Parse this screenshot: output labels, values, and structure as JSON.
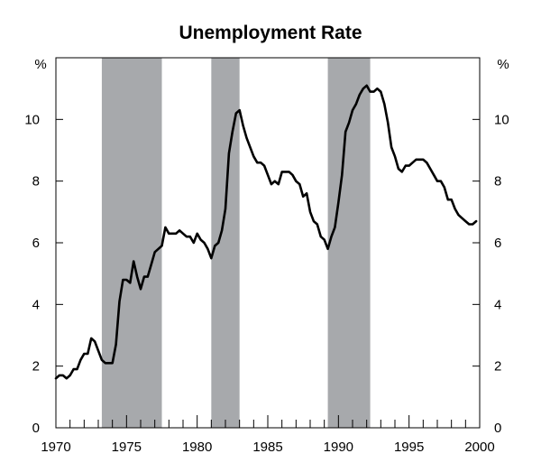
{
  "chart_data": {
    "type": "line",
    "title": "Unemployment Rate",
    "y_unit_left": "%",
    "y_unit_right": "%",
    "xlim": [
      1970,
      2000
    ],
    "ylim": [
      0,
      12
    ],
    "x_ticks": [
      "1970",
      "1975",
      "1980",
      "1985",
      "1990",
      "1995",
      "2000"
    ],
    "y_ticks": [
      "0",
      "2",
      "4",
      "6",
      "8",
      "10"
    ],
    "y_ticks_right": [
      "0",
      "2",
      "4",
      "6",
      "8",
      "10"
    ],
    "shaded_periods": [
      [
        1973.25,
        1977.5
      ],
      [
        1981.0,
        1983.0
      ],
      [
        1989.25,
        1992.25
      ]
    ],
    "shade_color": "#a7a9ac",
    "line_color": "#000000",
    "grid": false,
    "series": [
      {
        "x": [
          1970.0,
          1970.25,
          1970.5,
          1970.75,
          1971.0,
          1971.25,
          1971.5,
          1971.75,
          1972.0,
          1972.25,
          1972.5,
          1972.75,
          1973.0,
          1973.25,
          1973.5,
          1973.75,
          1974.0,
          1974.25,
          1974.5,
          1974.75,
          1975.0,
          1975.25,
          1975.5,
          1975.75,
          1976.0,
          1976.25,
          1976.5,
          1976.75,
          1977.0,
          1977.25,
          1977.5,
          1977.75,
          1978.0,
          1978.25,
          1978.5,
          1978.75,
          1979.0,
          1979.25,
          1979.5,
          1979.75,
          1980.0,
          1980.25,
          1980.5,
          1980.75,
          1981.0,
          1981.25,
          1981.5,
          1981.75,
          1982.0,
          1982.25,
          1982.5,
          1982.75,
          1983.0,
          1983.25,
          1983.5,
          1983.75,
          1984.0,
          1984.25,
          1984.5,
          1984.75,
          1985.0,
          1985.25,
          1985.5,
          1985.75,
          1986.0,
          1986.25,
          1986.5,
          1986.75,
          1987.0,
          1987.25,
          1987.5,
          1987.75,
          1988.0,
          1988.25,
          1988.5,
          1988.75,
          1989.0,
          1989.25,
          1989.5,
          1989.75,
          1990.0,
          1990.25,
          1990.5,
          1990.75,
          1991.0,
          1991.25,
          1991.5,
          1991.75,
          1992.0,
          1992.25,
          1992.5,
          1992.75,
          1993.0,
          1993.25,
          1993.5,
          1993.75,
          1994.0,
          1994.25,
          1994.5,
          1994.75,
          1995.0,
          1995.25,
          1995.5,
          1995.75,
          1996.0,
          1996.25,
          1996.5,
          1996.75,
          1997.0,
          1997.25,
          1997.5,
          1997.75,
          1998.0,
          1998.25,
          1998.5,
          1998.75,
          1999.0,
          1999.25,
          1999.5,
          1999.75
        ],
        "values": [
          1.6,
          1.7,
          1.7,
          1.6,
          1.7,
          1.9,
          1.9,
          2.2,
          2.4,
          2.4,
          2.9,
          2.8,
          2.5,
          2.2,
          2.1,
          2.1,
          2.1,
          2.7,
          4.1,
          4.8,
          4.8,
          4.7,
          5.4,
          4.9,
          4.5,
          4.9,
          4.9,
          5.3,
          5.7,
          5.8,
          5.9,
          6.5,
          6.3,
          6.3,
          6.3,
          6.4,
          6.3,
          6.2,
          6.2,
          6.0,
          6.3,
          6.1,
          6.0,
          5.8,
          5.5,
          5.9,
          6.0,
          6.4,
          7.1,
          8.9,
          9.6,
          10.2,
          10.3,
          9.8,
          9.4,
          9.1,
          8.8,
          8.6,
          8.6,
          8.5,
          8.2,
          7.9,
          8.0,
          7.9,
          8.3,
          8.3,
          8.3,
          8.2,
          8.0,
          7.9,
          7.5,
          7.6,
          7.0,
          6.7,
          6.6,
          6.2,
          6.1,
          5.8,
          6.2,
          6.5,
          7.3,
          8.2,
          9.6,
          9.9,
          10.3,
          10.5,
          10.8,
          11.0,
          11.1,
          10.9,
          10.9,
          11.0,
          10.9,
          10.5,
          9.9,
          9.1,
          8.8,
          8.4,
          8.3,
          8.5,
          8.5,
          8.6,
          8.7,
          8.7,
          8.7,
          8.6,
          8.4,
          8.2,
          8.0,
          8.0,
          7.8,
          7.4,
          7.4,
          7.1,
          6.9,
          6.8,
          6.7,
          6.6,
          6.6,
          6.7
        ]
      }
    ]
  }
}
